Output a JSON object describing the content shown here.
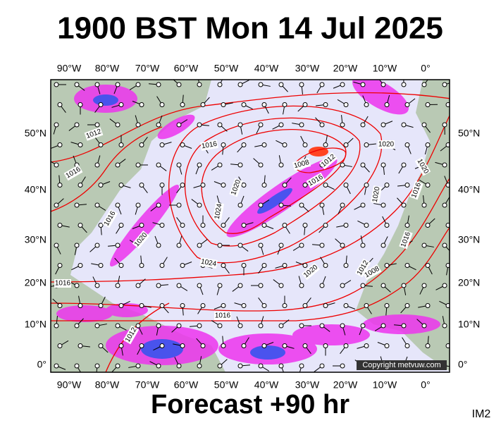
{
  "title": "1900 BST Mon 14 Jul 2025",
  "footer": "Forecast +90 hr",
  "corner_label": "IM2",
  "map": {
    "longitude_labels": [
      "90°W",
      "80°W",
      "70°W",
      "60°W",
      "50°W",
      "40°W",
      "30°W",
      "20°W",
      "10°W",
      "0°"
    ],
    "latitude_labels": [
      "50°N",
      "40°N",
      "30°N",
      "20°N",
      "10°N",
      "0°"
    ],
    "isobar_labels": [
      "1012",
      "1016",
      "1016",
      "1008",
      "1012",
      "1016",
      "1020",
      "1020",
      "1020",
      "1024",
      "1016",
      "1020",
      "1016",
      "1020",
      "1016",
      "1024",
      "1020",
      "1012",
      "1008",
      "1016",
      "1016",
      "1012"
    ],
    "copyright": "Copyright metvuw.com"
  }
}
